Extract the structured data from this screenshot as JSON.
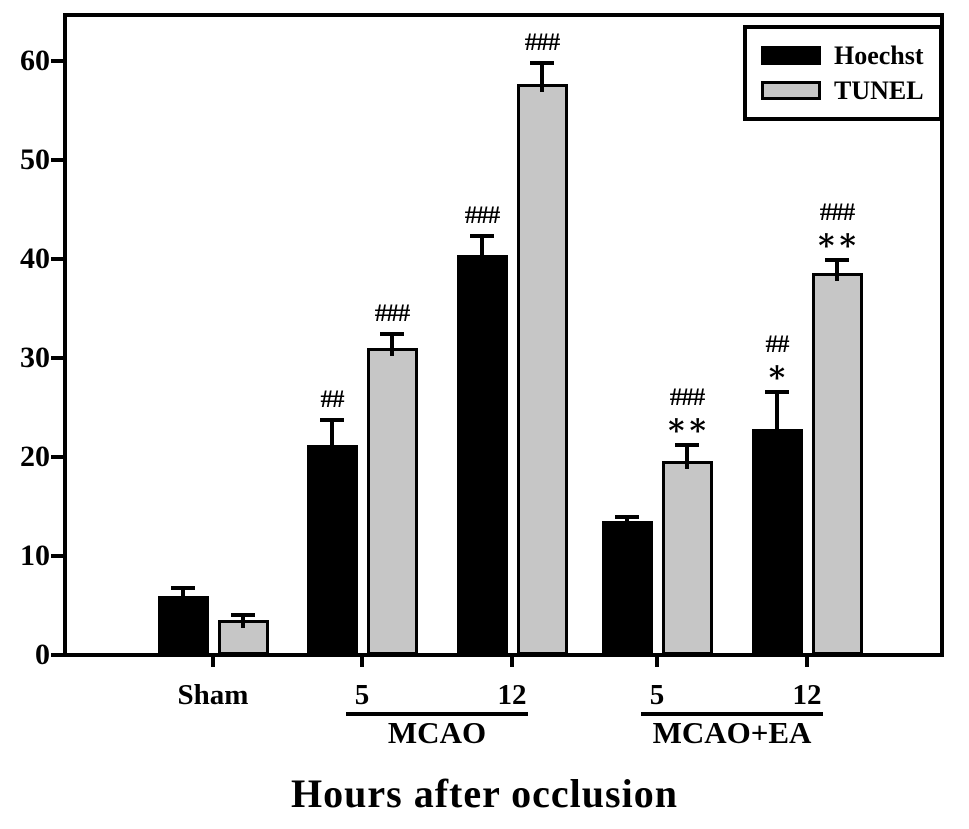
{
  "chart_data": {
    "type": "bar",
    "title": "",
    "xlabel": "Hours after occlusion",
    "ylabel": "",
    "ylim": [
      0,
      65
    ],
    "yticks": [
      0,
      10,
      20,
      30,
      40,
      50,
      60
    ],
    "grid": false,
    "legend": {
      "position": "top-right",
      "entries": [
        {
          "name": "Hoechst",
          "color": "#000000"
        },
        {
          "name": "TUNEL",
          "color": "#c6c6c6"
        }
      ]
    },
    "series_names": [
      "Hoechst",
      "TUNEL"
    ],
    "groups": [
      {
        "tick_label": "Sham",
        "bracket": null,
        "bars": [
          {
            "series": "Hoechst",
            "value": 6.0,
            "error": 0.7,
            "sig": []
          },
          {
            "series": "TUNEL",
            "value": 3.5,
            "error": 0.4,
            "sig": []
          }
        ]
      },
      {
        "tick_label": "5",
        "bracket": "MCAO",
        "bars": [
          {
            "series": "Hoechst",
            "value": 21.2,
            "error": 2.4,
            "sig": [
              "##"
            ]
          },
          {
            "series": "TUNEL",
            "value": 31.0,
            "error": 1.3,
            "sig": [
              "###"
            ]
          }
        ]
      },
      {
        "tick_label": "12",
        "bracket": "MCAO",
        "bars": [
          {
            "series": "Hoechst",
            "value": 40.4,
            "error": 1.8,
            "sig": [
              "###"
            ]
          },
          {
            "series": "TUNEL",
            "value": 57.7,
            "error": 2.0,
            "sig": [
              "###"
            ]
          }
        ]
      },
      {
        "tick_label": "5",
        "bracket": "MCAO+EA",
        "bars": [
          {
            "series": "Hoechst",
            "value": 13.5,
            "error": 0.3,
            "sig": []
          },
          {
            "series": "TUNEL",
            "value": 19.6,
            "error": 1.5,
            "sig": [
              "###",
              "**"
            ]
          }
        ]
      },
      {
        "tick_label": "12",
        "bracket": "MCAO+EA",
        "bars": [
          {
            "series": "Hoechst",
            "value": 22.8,
            "error": 3.7,
            "sig": [
              "##",
              "*"
            ]
          },
          {
            "series": "TUNEL",
            "value": 38.6,
            "error": 1.2,
            "sig": [
              "###",
              "**"
            ]
          }
        ]
      }
    ],
    "brackets": [
      {
        "label": "MCAO"
      },
      {
        "label": "MCAO+EA"
      }
    ],
    "colors": {
      "hoechst": "#000000",
      "tunel": "#c6c6c6",
      "axis": "#000000",
      "background": "#ffffff"
    }
  }
}
